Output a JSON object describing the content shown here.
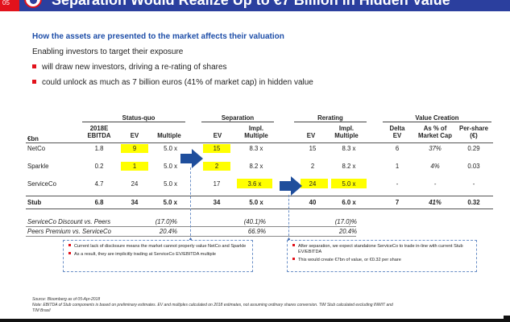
{
  "header": {
    "page_number": "05",
    "title": "Separation Would Realize Up to €7 Billion in Hidden Value"
  },
  "subtitle": "How the assets are presented to the market affects their valuation",
  "intro": "Enabling investors to target their exposure",
  "bullets": [
    "will draw new investors, driving a re-rating of shares",
    "could unlock as much as 7 billion euros (41% of market cap) in hidden value"
  ],
  "table": {
    "groups": {
      "status_quo": "Status-quo",
      "separation": "Separation",
      "rerating": "Rerating",
      "value_creation": "Value Creation"
    },
    "unit": "€bn",
    "headers": {
      "ebitda": [
        "2018E",
        "EBITDA"
      ],
      "ev": "EV",
      "multiple": "Multiple",
      "sep_ev": "EV",
      "sep_mult": [
        "Impl.",
        "Multiple"
      ],
      "rer_ev": "EV",
      "rer_mult": [
        "Impl.",
        "Multiple"
      ],
      "delta": [
        "Delta",
        "EV"
      ],
      "pct": [
        "As % of",
        "Market Cap"
      ],
      "per_share": [
        "Per-share",
        "(€)"
      ]
    },
    "rows": [
      {
        "name": "NetCo",
        "ebitda": "1.8",
        "ev": "9",
        "mult": "5.0 x",
        "sep_ev": "15",
        "sep_mult": "8.3 x",
        "rer_ev": "15",
        "rer_mult": "8.3 x",
        "delta": "6",
        "pct": "37%",
        "per_share": "0.29"
      },
      {
        "name": "Sparkle",
        "ebitda": "0.2",
        "ev": "1",
        "mult": "5.0 x",
        "sep_ev": "2",
        "sep_mult": "8.2 x",
        "rer_ev": "2",
        "rer_mult": "8.2 x",
        "delta": "1",
        "pct": "4%",
        "per_share": "0.03"
      },
      {
        "name": "ServiceCo",
        "ebitda": "4.7",
        "ev": "24",
        "mult": "5.0 x",
        "sep_ev": "17",
        "sep_mult": "3.6 x",
        "rer_ev": "24",
        "rer_mult": "5.0 x",
        "delta": "-",
        "pct": "-",
        "per_share": "-"
      }
    ],
    "stub": {
      "name": "Stub",
      "ebitda": "6.8",
      "ev": "34",
      "mult": "5.0 x",
      "sep_ev": "34",
      "sep_mult": "5.0 x",
      "rer_ev": "40",
      "rer_mult": "6.0 x",
      "delta": "7",
      "pct": "41%",
      "per_share": "0.32"
    },
    "extra_rows": [
      {
        "name": "ServiceCo Discount vs. Peers",
        "status_quo": "(17.0)%",
        "separation": "(40.1)%",
        "rerating": "(17.0)%"
      },
      {
        "name": "Peers Premium vs. ServiceCo",
        "status_quo": "20.4%",
        "separation": "66.9%",
        "rerating": "20.4%"
      }
    ]
  },
  "callouts": {
    "left": [
      "Current lack of disclosure means the market cannot properly value NetCo and Sparkle",
      "As a result, they are implicitly trading at ServiceCo EV/EBITDA multiple"
    ],
    "right": [
      "After separation, we expect standalone ServiceCo to trade in-line with current Stub EV/EBITDA",
      "This would create €7bn of value, or €0.32 per share"
    ]
  },
  "footnotes": [
    "Source: Bloomberg as of 05-Apr-2018",
    "Note: EBITDA of Stub components is based on preliminary estimates. EV and multiples calculated on 2018 estimates, not assuming ordinary shares conversion. TIM Stub calculated excluding INWIT and",
    "TIM Brasil"
  ],
  "colors": {
    "header_blue": "#2b3f9e",
    "accent_red": "#e2121b",
    "subtitle_blue": "#1e4ea8",
    "arrow_blue": "#1f4e9c",
    "highlight": "#ffff00"
  }
}
